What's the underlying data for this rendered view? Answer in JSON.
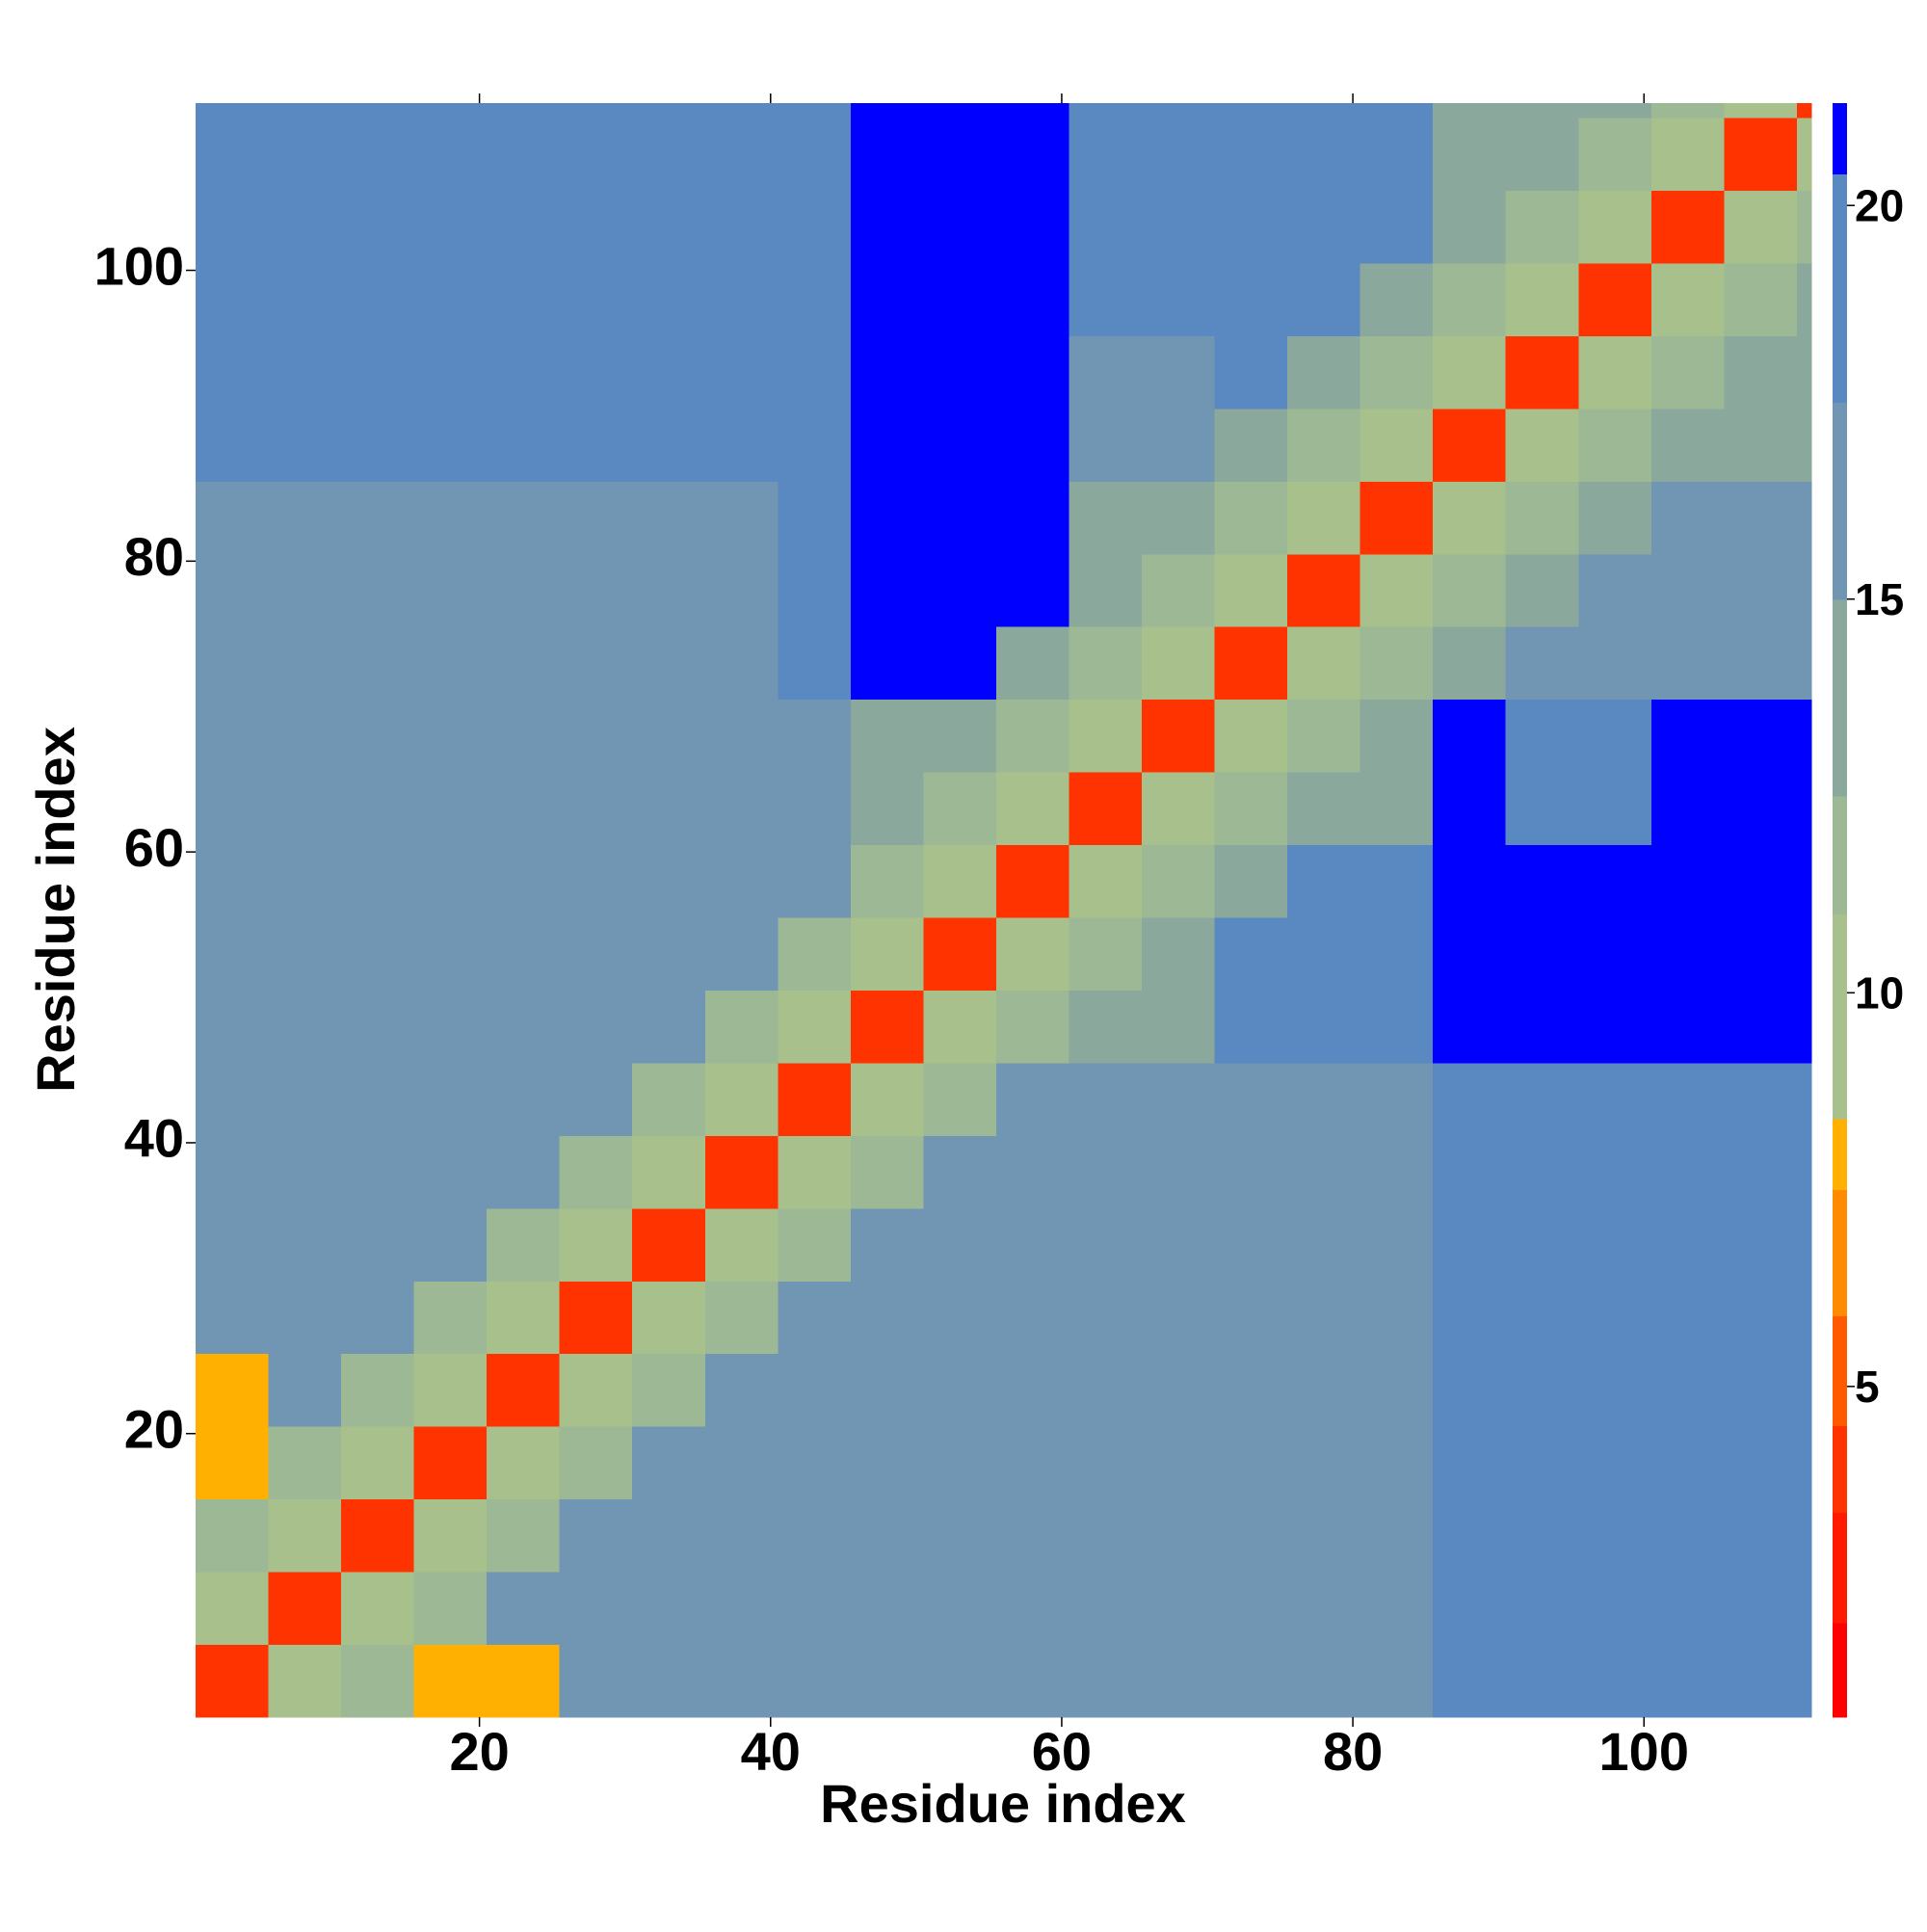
{
  "chart_data": {
    "type": "heatmap",
    "x_label": "Residue index",
    "y_label": "Residue index",
    "xlim": [
      0.5,
      111.5
    ],
    "ylim": [
      0.5,
      111.5
    ],
    "xticks": [
      20,
      40,
      60,
      80,
      100
    ],
    "yticks": [
      20,
      40,
      60,
      80,
      100
    ],
    "x_bins": [
      0.5,
      5.5,
      10.5,
      15.5,
      20.5,
      25.5,
      30.5,
      35.5,
      40.5,
      45.5,
      50.5,
      55.5,
      60.5,
      65.5,
      70.5,
      75.5,
      80.5,
      85.5,
      90.5,
      95.5,
      100.5,
      105.5,
      110.5,
      111.5
    ],
    "y_bins": [
      0.5,
      5.5,
      10.5,
      15.5,
      20.5,
      25.5,
      30.5,
      35.5,
      40.5,
      45.5,
      50.5,
      55.5,
      60.5,
      65.5,
      70.5,
      75.5,
      80.5,
      85.5,
      90.5,
      95.5,
      100.5,
      105.5,
      110.5,
      111.5
    ],
    "z": [
      [
        4,
        9,
        12,
        8,
        8,
        15,
        15,
        15,
        15,
        15,
        15,
        15,
        16,
        16,
        16,
        16,
        16,
        18,
        20,
        20,
        20,
        20,
        20
      ],
      [
        9,
        4,
        9,
        12,
        15,
        15,
        15,
        15,
        15,
        15,
        15,
        15,
        16,
        16,
        16,
        16,
        16,
        18,
        20,
        20,
        20,
        20,
        20
      ],
      [
        12,
        9,
        4,
        9,
        12,
        15,
        15,
        15,
        15,
        15,
        15,
        15,
        16,
        16,
        16,
        16,
        16,
        18,
        20,
        20,
        20,
        20,
        20
      ],
      [
        8,
        12,
        9,
        4,
        9,
        12,
        15,
        15,
        15,
        15,
        15,
        15,
        16,
        16,
        16,
        16,
        16,
        18,
        20,
        20,
        20,
        20,
        20
      ],
      [
        8,
        15,
        12,
        9,
        4,
        9,
        12,
        15,
        15,
        15,
        15,
        15,
        16,
        16,
        16,
        16,
        16,
        18,
        20,
        20,
        20,
        20,
        20
      ],
      [
        15,
        15,
        15,
        12,
        9,
        4,
        9,
        12,
        15,
        15,
        15,
        15,
        16,
        16,
        16,
        16,
        16,
        18,
        20,
        20,
        20,
        20,
        20
      ],
      [
        15,
        15,
        15,
        15,
        12,
        9,
        4,
        9,
        12,
        15,
        15,
        15,
        16,
        16,
        16,
        16,
        16,
        18,
        20,
        20,
        20,
        20,
        20
      ],
      [
        15,
        15,
        15,
        15,
        15,
        12,
        9,
        4,
        9,
        12,
        15,
        15,
        16,
        16,
        16,
        16,
        16,
        18,
        20,
        20,
        20,
        20,
        20
      ],
      [
        15,
        15,
        15,
        15,
        15,
        15,
        12,
        9,
        4,
        9,
        12,
        15,
        16,
        16,
        16,
        16,
        16,
        18,
        20,
        20,
        20,
        20,
        20
      ],
      [
        16,
        16,
        16,
        16,
        16,
        16,
        16,
        12,
        9,
        4,
        9,
        12,
        14,
        14,
        20,
        20,
        20,
        21,
        21,
        21,
        21,
        21,
        21
      ],
      [
        16,
        16,
        16,
        16,
        16,
        16,
        16,
        16,
        12,
        9,
        4,
        9,
        12,
        14,
        20,
        20,
        20,
        21,
        21,
        21,
        21,
        21,
        21
      ],
      [
        16,
        16,
        16,
        16,
        16,
        16,
        16,
        16,
        16,
        12,
        9,
        4,
        9,
        12,
        14,
        20,
        20,
        21,
        21,
        21,
        21,
        21,
        21
      ],
      [
        16,
        16,
        16,
        16,
        16,
        16,
        16,
        16,
        16,
        14,
        12,
        9,
        4,
        9,
        12,
        14,
        14,
        21,
        19,
        19,
        21,
        21,
        21
      ],
      [
        16,
        16,
        16,
        16,
        16,
        16,
        16,
        16,
        16,
        14,
        14,
        12,
        9,
        4,
        9,
        12,
        14,
        21,
        19,
        19,
        21,
        21,
        21
      ],
      [
        16,
        16,
        16,
        16,
        16,
        16,
        16,
        16,
        18,
        21,
        21,
        14,
        12,
        9,
        4,
        9,
        12,
        14,
        16,
        16,
        17,
        17,
        17
      ],
      [
        16,
        16,
        16,
        16,
        16,
        16,
        16,
        16,
        18,
        21,
        21,
        21,
        14,
        12,
        9,
        4,
        9,
        12,
        14,
        16,
        17,
        17,
        17
      ],
      [
        16,
        16,
        16,
        16,
        16,
        16,
        16,
        16,
        18,
        21,
        21,
        21,
        14,
        14,
        12,
        9,
        4,
        9,
        12,
        14,
        17,
        17,
        17
      ],
      [
        20,
        20,
        20,
        20,
        20,
        20,
        20,
        20,
        20,
        21,
        21,
        21,
        17,
        17,
        14,
        12,
        9,
        4,
        9,
        12,
        14,
        13,
        13
      ],
      [
        20,
        20,
        20,
        20,
        20,
        20,
        20,
        20,
        20,
        21,
        21,
        21,
        17,
        17,
        18,
        14,
        12,
        9,
        4,
        9,
        12,
        14,
        13
      ],
      [
        20,
        20,
        20,
        20,
        20,
        20,
        20,
        20,
        20,
        21,
        21,
        21,
        20,
        20,
        18,
        18,
        14,
        12,
        9,
        4,
        9,
        12,
        14
      ],
      [
        20,
        20,
        20,
        20,
        20,
        20,
        20,
        20,
        20,
        21,
        21,
        21,
        20,
        20,
        18,
        18,
        18,
        14,
        12,
        9,
        4,
        9,
        12
      ],
      [
        20,
        20,
        20,
        20,
        20,
        20,
        20,
        20,
        20,
        21,
        21,
        21,
        20,
        20,
        18,
        18,
        18,
        13,
        14,
        12,
        9,
        4,
        9
      ],
      [
        20,
        20,
        20,
        20,
        20,
        20,
        20,
        20,
        20,
        21,
        21,
        21,
        20,
        20,
        18,
        18,
        18,
        13,
        13,
        14,
        12,
        9,
        4
      ]
    ],
    "colorbar": {
      "lim": [
        0.8,
        21.3
      ],
      "ticks": [
        5,
        10,
        15,
        20
      ],
      "levels": [
        0.8,
        2,
        3.4,
        4.5,
        5.9,
        7.5,
        8.4,
        11,
        12.5,
        15,
        17.5,
        20.4,
        21.3
      ],
      "colors": [
        "#ff0000",
        "#ff1a00",
        "#ff3300",
        "#ff5a00",
        "#ff8c00",
        "#ffb000",
        "#a8c08c",
        "#9cb894",
        "#8aa89c",
        "#7096b4",
        "#5a88c0",
        "#0000ff"
      ]
    }
  }
}
